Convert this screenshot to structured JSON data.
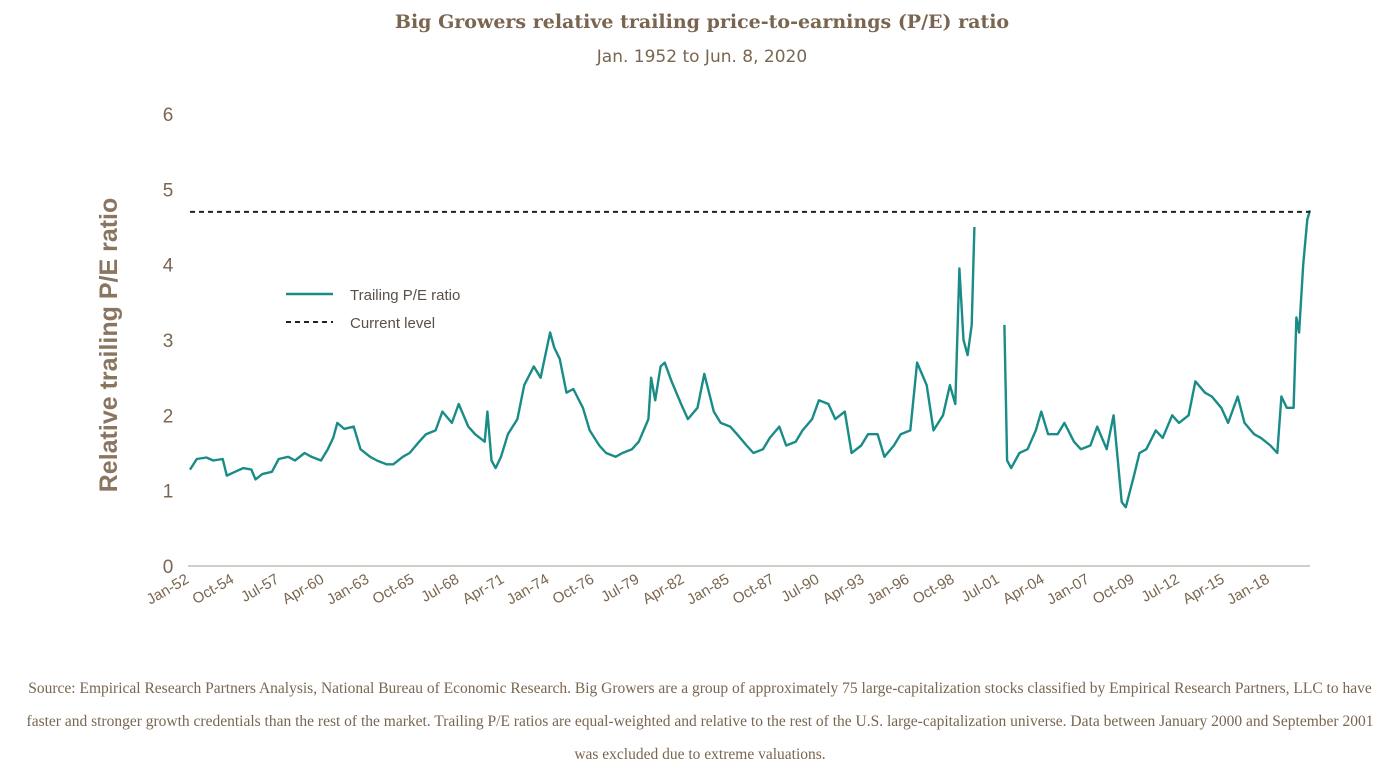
{
  "chart_data": {
    "type": "line",
    "title": "Big Growers relative trailing price-to-earnings (P/E) ratio",
    "subtitle": "Jan. 1952 to Jun. 8, 2020",
    "ylabel": "Relative trailing P/E ratio",
    "xlabel": "",
    "ylim": [
      0,
      6
    ],
    "yticks": [
      "0",
      "1",
      "2",
      "3",
      "4",
      "5",
      "6"
    ],
    "xlim": [
      "Jan-52",
      "Jun-20"
    ],
    "xtick_labels": [
      "Jan-52",
      "Oct-54",
      "Jul-57",
      "Apr-60",
      "Jan-63",
      "Oct-65",
      "Jul-68",
      "Apr-71",
      "Jan-74",
      "Oct-76",
      "Jul-79",
      "Apr-82",
      "Jan-85",
      "Oct-87",
      "Jul-90",
      "Apr-93",
      "Jan-96",
      "Oct-98",
      "Jul-01",
      "Apr-04",
      "Jan-07",
      "Oct-09",
      "Jul-12",
      "Apr-15",
      "Jan-18"
    ],
    "grid": false,
    "legend_position": "upper-left",
    "colors": {
      "series": "#1a8c87",
      "current": "#222222",
      "axis": "#cfcfc9",
      "text": "#7a6650"
    },
    "series": [
      {
        "name": "Trailing P/E ratio",
        "segments": [
          [
            [
              "1952-01",
              1.28
            ],
            [
              "1952-06",
              1.42
            ],
            [
              "1953-01",
              1.44
            ],
            [
              "1953-06",
              1.4
            ],
            [
              "1954-01",
              1.42
            ],
            [
              "1954-04",
              1.2
            ],
            [
              "1954-10",
              1.25
            ],
            [
              "1955-04",
              1.3
            ],
            [
              "1955-10",
              1.28
            ],
            [
              "1956-01",
              1.15
            ],
            [
              "1956-06",
              1.22
            ],
            [
              "1957-01",
              1.25
            ],
            [
              "1957-06",
              1.42
            ],
            [
              "1958-01",
              1.45
            ],
            [
              "1958-06",
              1.4
            ],
            [
              "1959-01",
              1.5
            ],
            [
              "1959-06",
              1.45
            ],
            [
              "1960-01",
              1.4
            ],
            [
              "1960-06",
              1.55
            ],
            [
              "1960-10",
              1.7
            ],
            [
              "1961-01",
              1.9
            ],
            [
              "1961-06",
              1.82
            ],
            [
              "1962-01",
              1.85
            ],
            [
              "1962-06",
              1.55
            ],
            [
              "1963-01",
              1.45
            ],
            [
              "1963-06",
              1.4
            ],
            [
              "1964-01",
              1.35
            ],
            [
              "1964-06",
              1.35
            ],
            [
              "1965-01",
              1.45
            ],
            [
              "1965-06",
              1.5
            ],
            [
              "1966-01",
              1.65
            ],
            [
              "1966-06",
              1.75
            ],
            [
              "1967-01",
              1.8
            ],
            [
              "1967-06",
              2.05
            ],
            [
              "1968-01",
              1.9
            ],
            [
              "1968-06",
              2.15
            ],
            [
              "1969-01",
              1.85
            ],
            [
              "1969-06",
              1.75
            ],
            [
              "1970-01",
              1.65
            ],
            [
              "1970-03",
              2.05
            ],
            [
              "1970-06",
              1.4
            ],
            [
              "1970-09",
              1.3
            ],
            [
              "1971-01",
              1.45
            ],
            [
              "1971-06",
              1.75
            ],
            [
              "1972-01",
              1.95
            ],
            [
              "1972-06",
              2.4
            ],
            [
              "1973-01",
              2.65
            ],
            [
              "1973-06",
              2.5
            ],
            [
              "1974-01",
              3.1
            ],
            [
              "1974-04",
              2.9
            ],
            [
              "1974-08",
              2.75
            ],
            [
              "1975-01",
              2.3
            ],
            [
              "1975-06",
              2.35
            ],
            [
              "1976-01",
              2.1
            ],
            [
              "1976-06",
              1.8
            ],
            [
              "1977-01",
              1.6
            ],
            [
              "1977-06",
              1.5
            ],
            [
              "1978-01",
              1.45
            ],
            [
              "1978-06",
              1.5
            ],
            [
              "1979-01",
              1.55
            ],
            [
              "1979-06",
              1.65
            ],
            [
              "1980-01",
              1.95
            ],
            [
              "1980-03",
              2.5
            ],
            [
              "1980-06",
              2.2
            ],
            [
              "1980-10",
              2.65
            ],
            [
              "1981-01",
              2.7
            ],
            [
              "1981-06",
              2.45
            ],
            [
              "1982-01",
              2.15
            ],
            [
              "1982-06",
              1.95
            ],
            [
              "1983-01",
              2.1
            ],
            [
              "1983-06",
              2.55
            ],
            [
              "1984-01",
              2.05
            ],
            [
              "1984-06",
              1.9
            ],
            [
              "1985-01",
              1.85
            ],
            [
              "1985-06",
              1.75
            ],
            [
              "1986-01",
              1.6
            ],
            [
              "1986-06",
              1.5
            ],
            [
              "1987-01",
              1.55
            ],
            [
              "1987-06",
              1.7
            ],
            [
              "1988-01",
              1.85
            ],
            [
              "1988-06",
              1.6
            ],
            [
              "1989-01",
              1.65
            ],
            [
              "1989-06",
              1.8
            ],
            [
              "1990-01",
              1.95
            ],
            [
              "1990-06",
              2.2
            ],
            [
              "1991-01",
              2.15
            ],
            [
              "1991-06",
              1.95
            ],
            [
              "1992-01",
              2.05
            ],
            [
              "1992-06",
              1.5
            ],
            [
              "1993-01",
              1.6
            ],
            [
              "1993-06",
              1.75
            ],
            [
              "1994-01",
              1.75
            ],
            [
              "1994-06",
              1.45
            ],
            [
              "1995-01",
              1.6
            ],
            [
              "1995-06",
              1.75
            ],
            [
              "1996-01",
              1.8
            ],
            [
              "1996-06",
              2.7
            ],
            [
              "1997-01",
              2.4
            ],
            [
              "1997-06",
              1.8
            ],
            [
              "1998-01",
              2.0
            ],
            [
              "1998-06",
              2.4
            ],
            [
              "1998-10",
              2.15
            ],
            [
              "1999-01",
              3.95
            ],
            [
              "1999-04",
              3.0
            ],
            [
              "1999-07",
              2.8
            ],
            [
              "1999-10",
              3.2
            ],
            [
              "1999-12",
              4.5
            ]
          ],
          [
            [
              "2001-10",
              3.2
            ],
            [
              "2001-12",
              1.4
            ],
            [
              "2002-03",
              1.3
            ],
            [
              "2002-09",
              1.5
            ],
            [
              "2003-03",
              1.55
            ],
            [
              "2003-09",
              1.8
            ],
            [
              "2004-01",
              2.05
            ],
            [
              "2004-06",
              1.75
            ],
            [
              "2005-01",
              1.75
            ],
            [
              "2005-06",
              1.9
            ],
            [
              "2006-01",
              1.65
            ],
            [
              "2006-06",
              1.55
            ],
            [
              "2007-01",
              1.6
            ],
            [
              "2007-06",
              1.85
            ],
            [
              "2008-01",
              1.55
            ],
            [
              "2008-06",
              2.0
            ],
            [
              "2008-12",
              0.85
            ],
            [
              "2009-03",
              0.78
            ],
            [
              "2009-09",
              1.2
            ],
            [
              "2010-01",
              1.5
            ],
            [
              "2010-06",
              1.55
            ],
            [
              "2011-01",
              1.8
            ],
            [
              "2011-06",
              1.7
            ],
            [
              "2012-01",
              2.0
            ],
            [
              "2012-06",
              1.9
            ],
            [
              "2013-01",
              2.0
            ],
            [
              "2013-06",
              2.45
            ],
            [
              "2014-01",
              2.3
            ],
            [
              "2014-06",
              2.25
            ],
            [
              "2015-01",
              2.1
            ],
            [
              "2015-06",
              1.9
            ],
            [
              "2016-01",
              2.25
            ],
            [
              "2016-06",
              1.9
            ],
            [
              "2017-01",
              1.75
            ],
            [
              "2017-06",
              1.7
            ],
            [
              "2018-01",
              1.6
            ],
            [
              "2018-06",
              1.5
            ],
            [
              "2018-09",
              2.25
            ],
            [
              "2019-01",
              2.1
            ],
            [
              "2019-06",
              2.1
            ],
            [
              "2019-08",
              3.3
            ],
            [
              "2019-10",
              3.1
            ],
            [
              "2020-01",
              4.0
            ],
            [
              "2020-04",
              4.6
            ],
            [
              "2020-06",
              4.72
            ]
          ]
        ]
      }
    ],
    "reference_lines": [
      {
        "name": "Current level",
        "value": 4.7,
        "style": "dashed"
      }
    ]
  },
  "footer": {
    "source": "Source: Empirical Research Partners Analysis, National Bureau of Economic Research. Big Growers are a group of approximately 75 large-capitalization stocks classified by Empirical Research Partners, LLC to have faster and stronger growth credentials than the rest of the market. Trailing P/E ratios are equal-weighted and relative to the rest of the U.S. large-capitalization universe. Data between January 2000 and September 2001 was excluded due to extreme valuations."
  }
}
